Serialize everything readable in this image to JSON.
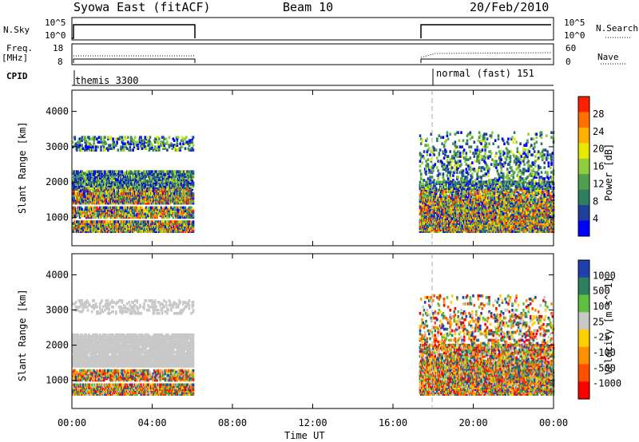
{
  "header": {
    "station": "Syowa East (fitACF)",
    "beam": "Beam 10",
    "date": "20/Feb/2010"
  },
  "panels": {
    "nsky": {
      "label": "N.Sky",
      "tick_top": "10^5",
      "tick_bottom": "10^0",
      "right_label": "N.Search",
      "right_top": "10^5",
      "right_bottom": "10^0"
    },
    "freq": {
      "label_line1": "Freq.",
      "label_line2": "[MHz]",
      "tick_top": "18",
      "tick_bottom": "8",
      "right_label": "Nave",
      "right_top": "60",
      "right_bottom": "0"
    },
    "cpid": {
      "label": "CPID",
      "mode1": "themis 3300",
      "mode2": "normal (fast) 151"
    }
  },
  "colors": {
    "power_scale": [
      "#0000ff",
      "#1f3f9f",
      "#2e7f5f",
      "#4fa04f",
      "#8fcf3f",
      "#e8e800",
      "#ffb000",
      "#ff7000",
      "#ff2000"
    ],
    "velocity_scale": [
      "#2040b0",
      "#2e7f5f",
      "#5fbf3f",
      "#c8c8c8",
      "#ffd000",
      "#ff9000",
      "#ff5000",
      "#ff0000"
    ]
  },
  "chart_data": [
    {
      "type": "heatmap",
      "quantity": "Power",
      "ylabel": "Slant Range [km]",
      "xlabel": "Time UT",
      "x_ticks": [
        "00:00",
        "04:00",
        "08:00",
        "12:00",
        "16:00",
        "20:00",
        "00:00"
      ],
      "y_ticks": [
        1000,
        2000,
        3000,
        4000
      ],
      "ylim": [
        200,
        4600
      ],
      "colorbar": {
        "label": "Power [dB]",
        "ticks": [
          4,
          8,
          12,
          16,
          20,
          24,
          28
        ],
        "range": [
          0,
          32
        ]
      },
      "data_intervals_hours": [
        [
          0.0,
          6.0
        ],
        [
          17.3,
          24.0
        ]
      ]
    },
    {
      "type": "heatmap",
      "quantity": "Velocity",
      "ylabel": "Slant Range [km]",
      "xlabel": "Time UT",
      "x_ticks": [
        "00:00",
        "04:00",
        "08:00",
        "12:00",
        "16:00",
        "20:00",
        "00:00"
      ],
      "y_ticks": [
        1000,
        2000,
        3000,
        4000
      ],
      "ylim": [
        200,
        4600
      ],
      "colorbar": {
        "label": "Velocity [m s^-1]",
        "ticks": [
          1000,
          500,
          100,
          25,
          -25,
          -100,
          -500,
          -1000
        ]
      },
      "data_intervals_hours": [
        [
          0.0,
          6.0
        ],
        [
          17.3,
          24.0
        ]
      ]
    }
  ],
  "xaxis_label": "Time UT"
}
